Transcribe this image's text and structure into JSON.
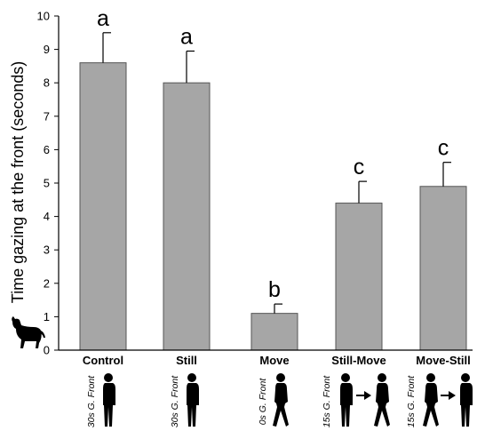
{
  "chart_data": {
    "type": "bar",
    "title": "",
    "xlabel": "",
    "ylabel": "Time gazing at the front (seconds)",
    "ylim": [
      0,
      10
    ],
    "yticks": [
      0,
      1,
      2,
      3,
      4,
      5,
      6,
      7,
      8,
      9,
      10
    ],
    "categories": [
      "Control",
      "Still",
      "Move",
      "Still-Move",
      "Move-Still"
    ],
    "values": [
      8.6,
      8.0,
      1.1,
      4.4,
      4.9
    ],
    "errors": [
      0.9,
      0.95,
      0.28,
      0.65,
      0.72
    ],
    "significance_letters": [
      "a",
      "a",
      "b",
      "c",
      "c"
    ],
    "conditions": [
      "30s G. Front",
      "30s G. Front",
      "0s G. Front",
      "15s G. Front",
      "15s G. Front"
    ],
    "pictograms": [
      "still",
      "still",
      "walking",
      "still-to-walking",
      "walking-to-still"
    ],
    "bar_color": "#a6a6a6",
    "grid": false,
    "legend": "none",
    "icons": [
      "dog-icon",
      "person-standing-icon",
      "person-walking-icon",
      "arrow-right-icon"
    ]
  }
}
